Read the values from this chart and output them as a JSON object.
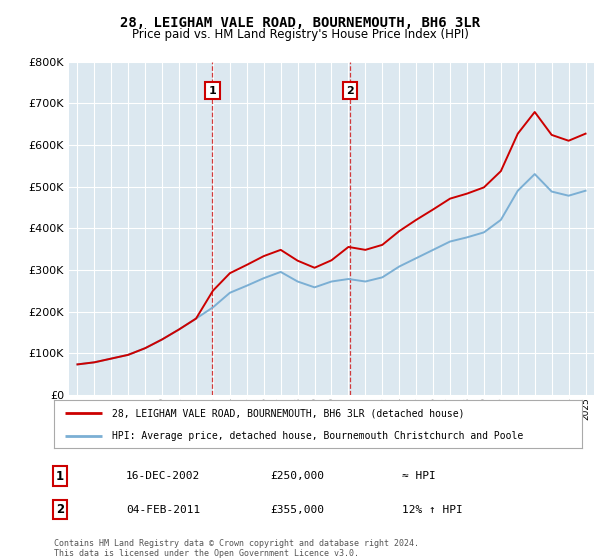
{
  "title": "28, LEIGHAM VALE ROAD, BOURNEMOUTH, BH6 3LR",
  "subtitle": "Price paid vs. HM Land Registry's House Price Index (HPI)",
  "legend_line1": "28, LEIGHAM VALE ROAD, BOURNEMOUTH, BH6 3LR (detached house)",
  "legend_line2": "HPI: Average price, detached house, Bournemouth Christchurch and Poole",
  "transaction1_date": "16-DEC-2002",
  "transaction1_price": "£250,000",
  "transaction1_hpi": "≈ HPI",
  "transaction1_year": 2002.96,
  "transaction2_date": "04-FEB-2011",
  "transaction2_price": "£355,000",
  "transaction2_hpi": "12% ↑ HPI",
  "transaction2_year": 2011.09,
  "footer": "Contains HM Land Registry data © Crown copyright and database right 2024.\nThis data is licensed under the Open Government Licence v3.0.",
  "red_color": "#cc0000",
  "blue_color": "#7bafd4",
  "plot_bg_color": "#dce8f0",
  "grid_color": "#ffffff",
  "ylim": [
    0,
    800000
  ],
  "xlim_start": 1994.5,
  "xlim_end": 2025.5,
  "hpi_years": [
    1995,
    1996,
    1997,
    1998,
    1999,
    2000,
    2001,
    2002,
    2003,
    2004,
    2005,
    2006,
    2007,
    2008,
    2009,
    2010,
    2011,
    2012,
    2013,
    2014,
    2015,
    2016,
    2017,
    2018,
    2019,
    2020,
    2021,
    2022,
    2023,
    2024,
    2025
  ],
  "hpi_values": [
    73000,
    78000,
    87000,
    96000,
    112000,
    133000,
    157000,
    183000,
    210000,
    245000,
    262000,
    280000,
    295000,
    272000,
    258000,
    272000,
    278000,
    272000,
    282000,
    308000,
    328000,
    348000,
    368000,
    378000,
    390000,
    420000,
    490000,
    530000,
    488000,
    478000,
    490000
  ],
  "red_years": [
    1995,
    1996,
    1997,
    1998,
    1999,
    2000,
    2001,
    2002,
    2003,
    2004,
    2005,
    2006,
    2007,
    2008,
    2009,
    2010,
    2011,
    2012,
    2013,
    2014,
    2015,
    2016,
    2017,
    2018,
    2019,
    2020,
    2021,
    2022,
    2023,
    2024,
    2025
  ],
  "red_values": [
    73000,
    78000,
    87000,
    96000,
    112000,
    133000,
    157000,
    183000,
    250000,
    292000,
    312000,
    333000,
    348000,
    322000,
    305000,
    323000,
    355000,
    348000,
    360000,
    393000,
    420000,
    445000,
    471000,
    483000,
    498000,
    537000,
    627000,
    679000,
    624000,
    610000,
    627000
  ]
}
